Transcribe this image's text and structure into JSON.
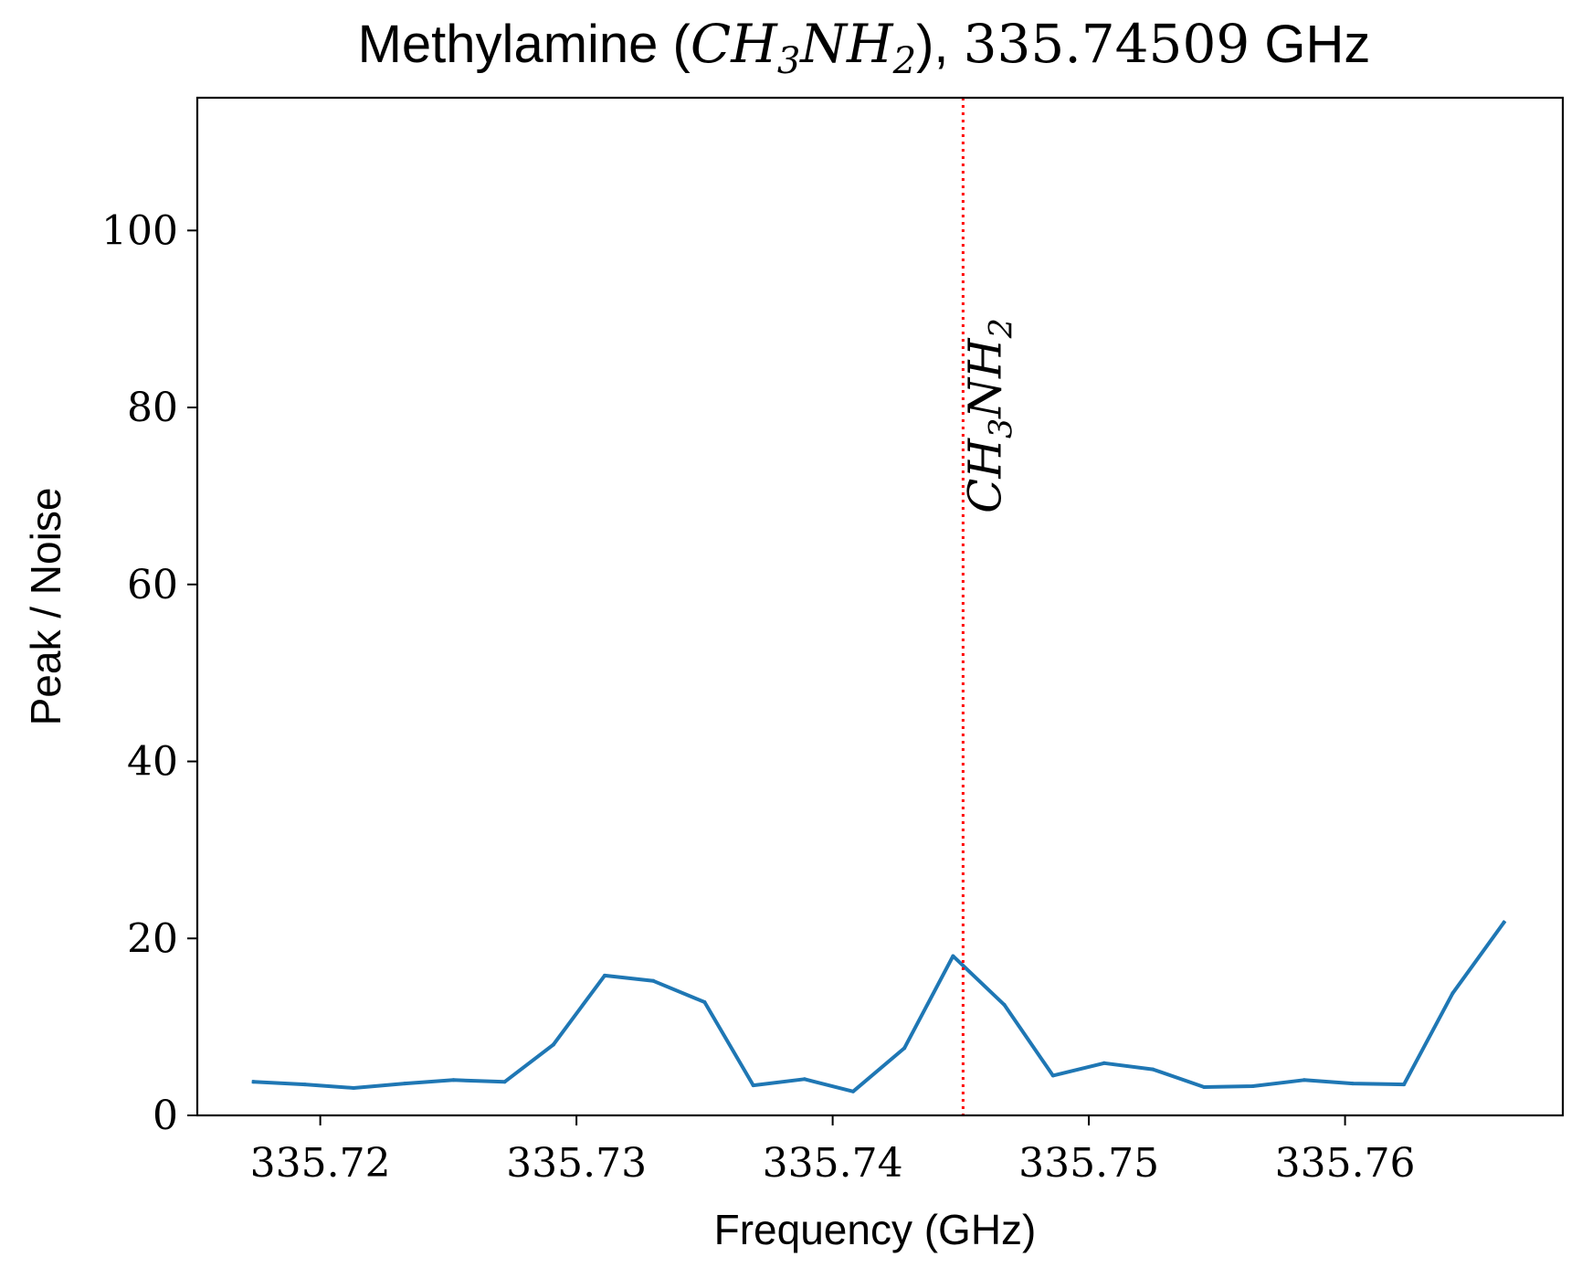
{
  "chart_data": {
    "type": "line",
    "title": "Methylamine (CH₃NH₂), 335.74509 GHz",
    "title_parts": {
      "prefix": "Methylamine (",
      "species": "CH",
      "sub1": "3",
      "mid": "NH",
      "sub2": "2",
      "suffix": "), ",
      "freq": "335.74509",
      "unit": " GHz"
    },
    "xlabel": "Frequency (GHz)",
    "ylabel": "Peak / Noise",
    "xlim": [
      335.7152,
      335.7685
    ],
    "ylim": [
      0,
      115
    ],
    "x_ticks": [
      335.72,
      335.73,
      335.74,
      335.75,
      335.76
    ],
    "x_tick_labels": [
      "335.72",
      "335.73",
      "335.74",
      "335.75",
      "335.76"
    ],
    "y_ticks": [
      0,
      20,
      40,
      60,
      80,
      100
    ],
    "y_tick_labels": [
      "0",
      "20",
      "40",
      "60",
      "80",
      "100"
    ],
    "grid": false,
    "legend": "none",
    "series": [
      {
        "color": "#1f77b4",
        "x": [
          335.7174,
          335.7194,
          335.7213,
          335.7233,
          335.7252,
          335.7272,
          335.7291,
          335.7311,
          335.733,
          335.735,
          335.7369,
          335.7389,
          335.7408,
          335.7428,
          335.7447,
          335.7467,
          335.7486,
          335.7506,
          335.7525,
          335.7545,
          335.7564,
          335.7584,
          335.7603,
          335.7623,
          335.7642,
          335.7662
        ],
        "values": [
          3.8,
          3.5,
          3.1,
          3.6,
          4.0,
          3.8,
          8.0,
          15.8,
          15.2,
          12.8,
          3.4,
          4.1,
          2.7,
          7.6,
          18.0,
          12.5,
          4.5,
          5.9,
          5.2,
          3.2,
          3.3,
          4.0,
          3.6,
          3.5,
          13.8,
          21.8
        ]
      }
    ],
    "markers": [
      {
        "x": 335.74509,
        "color": "#ff0000",
        "style": "dotted",
        "label_main": "CH",
        "label_sub1": "3",
        "label_mid": "NH",
        "label_sub2": "2"
      }
    ]
  }
}
